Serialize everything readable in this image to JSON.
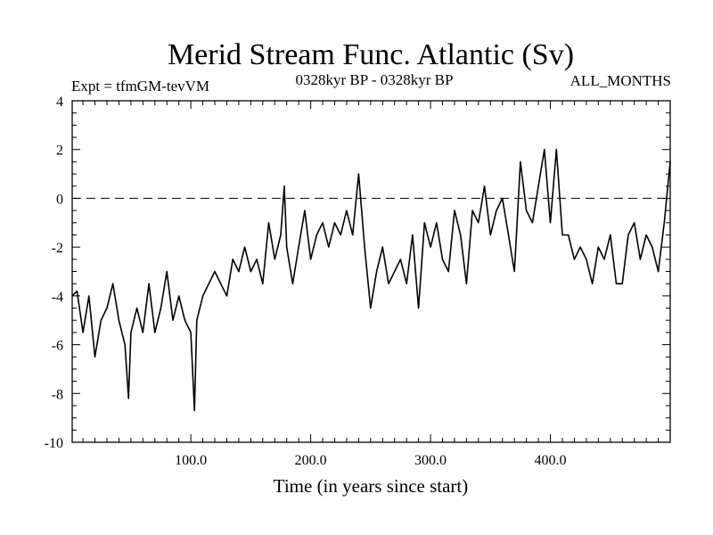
{
  "chart_data": {
    "type": "line",
    "title": "Merid Stream Func. Atlantic (Sv)",
    "subtitle_left": "Expt = tfmGM-tevVM",
    "subtitle_center": "0328kyr BP - 0328kyr BP",
    "subtitle_right": "ALL_MONTHS",
    "xlabel": "Time (in years since start)",
    "ylabel": "",
    "xlim": [
      1,
      500
    ],
    "ylim": [
      -10,
      4
    ],
    "x_major_ticks": [
      100,
      200,
      300,
      400
    ],
    "x_tick_labels": [
      "100.0",
      "200.0",
      "300.0",
      "400.0"
    ],
    "y_major_ticks": [
      -10,
      -8,
      -6,
      -4,
      -2,
      0,
      2,
      4
    ],
    "y_tick_labels": [
      "-10",
      "-8",
      "-6",
      "-4",
      "-2",
      "0",
      "2",
      "4"
    ],
    "reference_line": {
      "y": 0,
      "style": "dashed"
    },
    "grid": false,
    "legend": "none",
    "series": [
      {
        "x": [
          1,
          5,
          10,
          15,
          20,
          25,
          30,
          35,
          40,
          45,
          48,
          50,
          55,
          60,
          65,
          70,
          75,
          80,
          85,
          90,
          95,
          100,
          103,
          105,
          110,
          115,
          120,
          125,
          130,
          135,
          140,
          145,
          150,
          155,
          160,
          165,
          170,
          175,
          178,
          180,
          185,
          190,
          195,
          200,
          205,
          210,
          215,
          220,
          225,
          230,
          235,
          240,
          245,
          250,
          255,
          260,
          265,
          270,
          275,
          280,
          285,
          290,
          295,
          300,
          305,
          310,
          315,
          320,
          325,
          330,
          335,
          340,
          345,
          350,
          355,
          360,
          365,
          370,
          375,
          380,
          385,
          390,
          395,
          400,
          405,
          410,
          415,
          420,
          425,
          430,
          435,
          440,
          445,
          450,
          455,
          460,
          465,
          470,
          475,
          480,
          485,
          490,
          495,
          500
        ],
        "values": [
          -4.0,
          -3.8,
          -5.5,
          -4.0,
          -6.5,
          -5.0,
          -4.5,
          -3.5,
          -5.0,
          -6.0,
          -8.2,
          -5.5,
          -4.5,
          -5.5,
          -3.5,
          -5.5,
          -4.5,
          -3.0,
          -5.0,
          -4.0,
          -5.0,
          -5.5,
          -8.7,
          -5.0,
          -4.0,
          -3.5,
          -3.0,
          -3.5,
          -4.0,
          -2.5,
          -3.0,
          -2.0,
          -3.0,
          -2.5,
          -3.5,
          -1.0,
          -2.5,
          -1.5,
          0.5,
          -2.0,
          -3.5,
          -2.0,
          -0.5,
          -2.5,
          -1.5,
          -1.0,
          -2.0,
          -1.0,
          -1.5,
          -0.5,
          -1.5,
          1.0,
          -2.0,
          -4.5,
          -3.0,
          -2.0,
          -3.5,
          -3.0,
          -2.5,
          -3.5,
          -1.5,
          -4.5,
          -1.0,
          -2.0,
          -1.0,
          -2.5,
          -3.0,
          -0.5,
          -1.5,
          -3.5,
          -0.5,
          -1.0,
          0.5,
          -1.5,
          -0.5,
          0.0,
          -1.5,
          -3.0,
          1.5,
          -0.5,
          -1.0,
          0.5,
          2.0,
          -1.0,
          2.0,
          -1.5,
          -1.5,
          -2.5,
          -2.0,
          -2.5,
          -3.5,
          -2.0,
          -2.5,
          -1.5,
          -3.5,
          -3.5,
          -1.5,
          -1.0,
          -2.5,
          -1.5,
          -2.0,
          -3.0,
          -1.0,
          1.5
        ]
      }
    ]
  }
}
